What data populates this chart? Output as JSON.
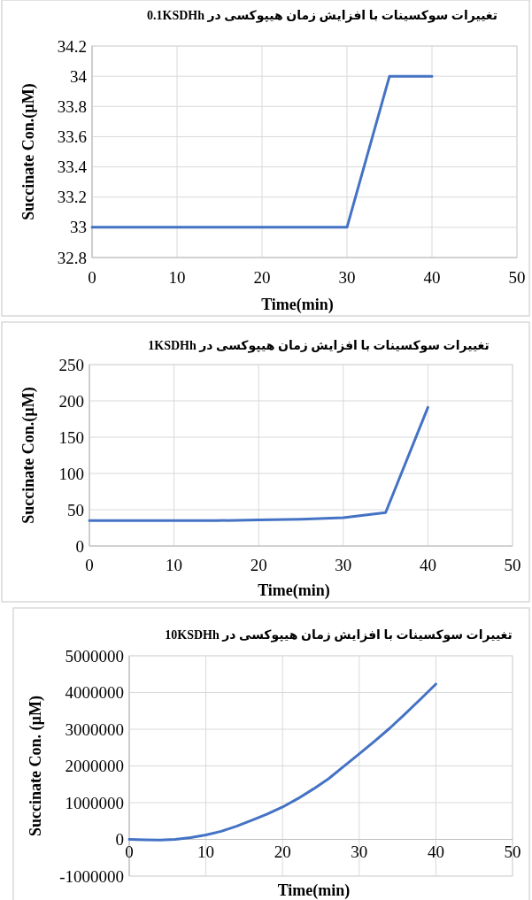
{
  "chart_data": [
    {
      "type": "line",
      "title": "تغییرات سوکسینات با افزایش زمان هیپوکسی در 0.1KSDHh",
      "xlabel": "Time(min)",
      "ylabel": "Succinate Con.(µM)",
      "grid": true,
      "marker": "none",
      "line_style": "solid",
      "xlim": [
        0,
        50
      ],
      "xticks": [
        0,
        10,
        20,
        30,
        40,
        50
      ],
      "ylim": [
        32.8,
        34.2
      ],
      "yticks": [
        32.8,
        33,
        33.2,
        33.4,
        33.6,
        33.8,
        34,
        34.2
      ],
      "series": [
        {
          "color": "#4472c4",
          "x": [
            0,
            5,
            10,
            15,
            20,
            25,
            30,
            35,
            40
          ],
          "values": [
            33,
            33,
            33,
            33,
            33,
            33,
            33,
            34,
            34
          ]
        }
      ]
    },
    {
      "type": "line",
      "title": "تغییرات سوکسینات با افزایش زمان هیپوکسی در 1KSDHh",
      "xlabel": "Time(min)",
      "ylabel": "Succinate Con.(µM)",
      "grid": true,
      "marker": "none",
      "line_style": "solid",
      "xlim": [
        0,
        50
      ],
      "xticks": [
        0,
        10,
        20,
        30,
        40,
        50
      ],
      "ylim": [
        0,
        250
      ],
      "yticks": [
        0,
        50,
        100,
        150,
        200,
        250
      ],
      "series": [
        {
          "color": "#4472c4",
          "x": [
            0,
            5,
            10,
            15,
            20,
            25,
            30,
            35,
            40
          ],
          "values": [
            35,
            35,
            35,
            35,
            36,
            37,
            39,
            46,
            191
          ]
        }
      ]
    },
    {
      "type": "line",
      "title": "تغییرات سوکسینات با افزایش زمان هیپوکسی در 10KSDHh",
      "xlabel": "Time(min)",
      "ylabel": "Succinate Con. (µM)",
      "grid": true,
      "marker": "none",
      "line_style": "solid",
      "xlim": [
        0,
        50
      ],
      "xticks": [
        0,
        10,
        20,
        30,
        40,
        50
      ],
      "ylim": [
        -1000000,
        5000000
      ],
      "yticks": [
        -1000000,
        0,
        1000000,
        2000000,
        3000000,
        4000000,
        5000000
      ],
      "series": [
        {
          "color": "#4472c4",
          "x": [
            0,
            2,
            4,
            6,
            8,
            10,
            12,
            14,
            16,
            18,
            20,
            22,
            24,
            26,
            28,
            30,
            32,
            34,
            36,
            38,
            40
          ],
          "values": [
            0,
            -10000,
            -20000,
            0,
            50000,
            120000,
            220000,
            360000,
            520000,
            690000,
            880000,
            1110000,
            1370000,
            1650000,
            1990000,
            2330000,
            2670000,
            3030000,
            3420000,
            3820000,
            4230000
          ]
        }
      ]
    }
  ]
}
